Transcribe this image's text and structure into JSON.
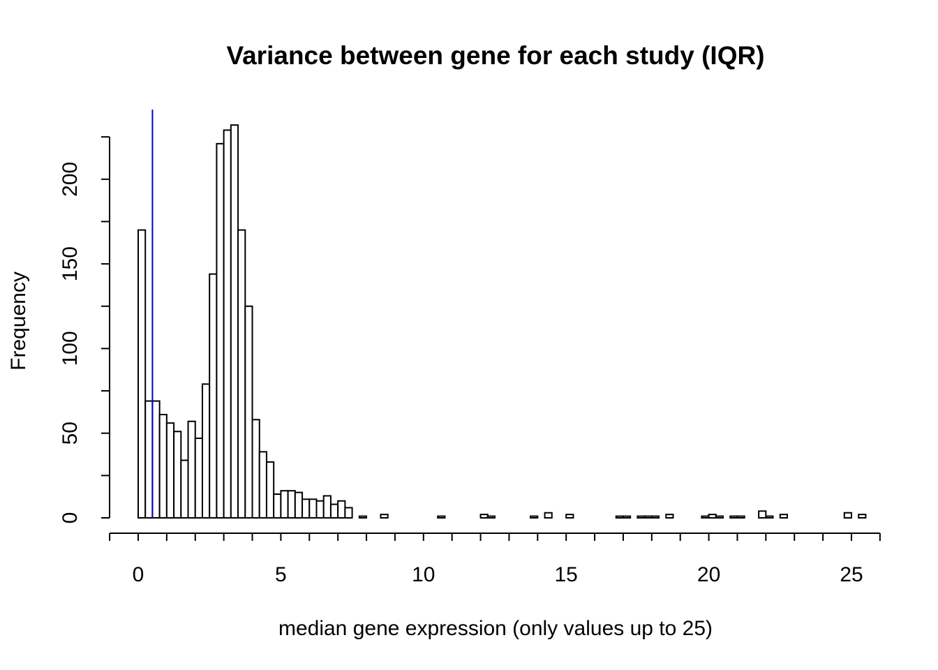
{
  "chart_data": {
    "type": "bar",
    "subtype": "histogram",
    "title": "Variance between gene for each study (IQR)",
    "xlabel": "median gene expression (only values up to 25)",
    "ylabel": "Frequency",
    "xlim": [
      -1,
      26
    ],
    "ylim": [
      0,
      225
    ],
    "x_ticks": [
      0,
      5,
      10,
      15,
      20,
      25
    ],
    "x_minor_step": 1,
    "y_ticks": [
      0,
      50,
      100,
      150,
      200
    ],
    "y_minor_step": 25,
    "bin_width": 0.25,
    "bin_start": 0,
    "values": [
      170,
      69,
      69,
      61,
      56,
      51,
      34,
      57,
      47,
      79,
      144,
      221,
      229,
      232,
      170,
      125,
      58,
      39,
      33,
      14,
      16,
      16,
      15,
      11,
      11,
      10,
      13,
      8,
      10,
      6,
      0,
      1,
      0,
      0,
      2,
      0,
      0,
      0,
      0,
      0,
      0,
      0,
      1,
      0,
      0,
      0,
      0,
      0,
      2,
      1,
      0,
      0,
      0,
      0,
      0,
      1,
      0,
      3,
      0,
      0,
      2,
      0,
      0,
      0,
      0,
      0,
      0,
      1,
      1,
      0,
      1,
      1,
      1,
      0,
      2,
      0,
      0,
      0,
      0,
      1,
      2,
      1,
      0,
      1,
      1,
      0,
      0,
      4,
      1,
      0,
      2,
      0,
      0,
      0,
      0,
      0,
      0,
      0,
      0,
      3,
      0,
      2
    ],
    "threshold_line": {
      "x": 0.5,
      "color": "#0000cc"
    },
    "bar_color": "#ffffff",
    "edge_color": "#000000",
    "grid": false,
    "legend": "none"
  }
}
